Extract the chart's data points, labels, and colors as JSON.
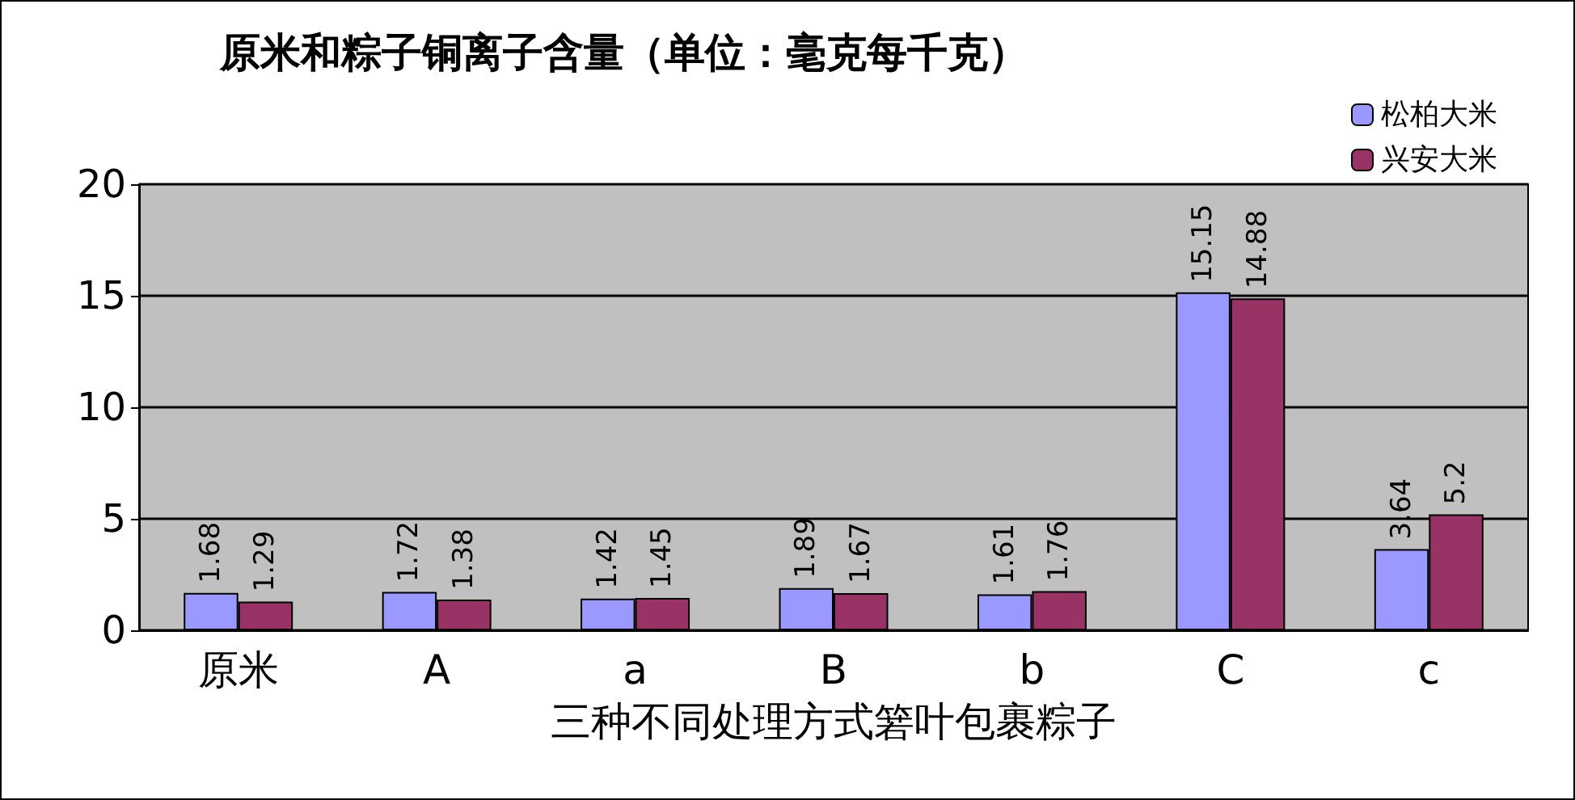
{
  "chart_data": {
    "type": "bar",
    "title": "原米和粽子铜离子含量（单位：毫克每千克）",
    "xlabel": "三种不同处理方式箬叶包裹粽子",
    "categories": [
      "原米",
      "A",
      "a",
      "B",
      "b",
      "C",
      "c"
    ],
    "series": [
      {
        "name": "松柏大米",
        "color": "#9999ff",
        "values": [
          1.68,
          1.72,
          1.42,
          1.89,
          1.61,
          15.15,
          3.64
        ]
      },
      {
        "name": "兴安大米",
        "color": "#993366",
        "values": [
          1.29,
          1.38,
          1.45,
          1.67,
          1.76,
          14.88,
          5.2
        ]
      }
    ],
    "ylim": [
      0,
      20
    ],
    "yticks": [
      0,
      5,
      10,
      15,
      20
    ],
    "grid": "y",
    "legend": "top right",
    "data_labels": true
  }
}
